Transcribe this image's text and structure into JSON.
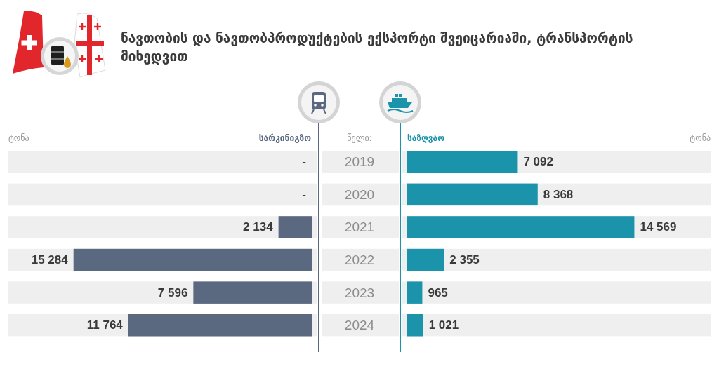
{
  "chart_data": [
    {
      "type": "bar",
      "orientation": "horizontal",
      "title": "ნავთობის და ნავთობპროდუქტების ექსპორტი შვეიცარიაში, ტრანსპორტის მიხედვით",
      "xlabel": "ტონა",
      "ylabel": "წელი:",
      "categories": [
        "2019",
        "2020",
        "2021",
        "2022",
        "2023",
        "2024"
      ],
      "series": [
        {
          "name": "სარკინიგზო",
          "color": "#5a6880",
          "values": [
            null,
            null,
            2134,
            15284,
            7596,
            11764
          ],
          "value_labels": [
            "-",
            "-",
            "2 134",
            "15 284",
            "7 596",
            "11 764"
          ]
        }
      ]
    },
    {
      "type": "bar",
      "orientation": "horizontal",
      "annotations": [
        "ტონა"
      ],
      "categories": [
        null,
        null,
        null,
        null,
        null,
        null
      ],
      "series": [
        {
          "name": "საზღვაო",
          "color": "#1b93aa",
          "values": [
            7092,
            8368,
            14569,
            2355,
            965,
            1021
          ],
          "value_labels": [
            "7 092",
            "8 368",
            "14 569",
            "2 355",
            "965",
            "1 021"
          ]
        }
      ]
    }
  ]
}
